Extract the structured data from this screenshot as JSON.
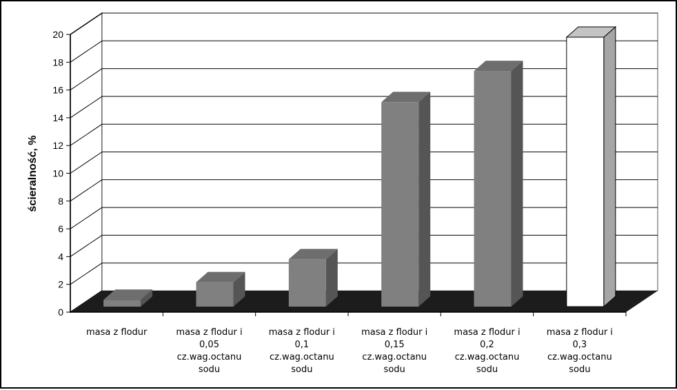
{
  "chart_data": {
    "type": "bar",
    "title": "",
    "xlabel": "",
    "ylabel": "ścieralność, %",
    "ylim": [
      0,
      20
    ],
    "yticks": [
      "0",
      "2",
      "4",
      "6",
      "8",
      "10",
      "12",
      "14",
      "16",
      "18",
      "20"
    ],
    "grid": true,
    "categories": [
      [
        "masa z flodur"
      ],
      [
        "masa z flodur i",
        "0,05",
        "cz.wag.octanu",
        "sodu"
      ],
      [
        "masa z flodur i",
        "0,1",
        "cz.wag.octanu",
        "sodu"
      ],
      [
        "masa z flodur i",
        "0,15",
        "cz.wag.octanu",
        "sodu"
      ],
      [
        "masa z flodur i",
        "0,2",
        "cz.wag.octanu",
        "sodu"
      ],
      [
        "masa z flodur i",
        "0,3",
        "cz.wag.octanu",
        "sodu"
      ]
    ],
    "values": [
      0.5,
      1.8,
      3.5,
      15.1,
      17.4,
      19.9
    ],
    "colors": {
      "bar_front": "#808080",
      "bar_side": "#555555",
      "bar_top": "#6e6e6e",
      "highlight_front": "#ffffff",
      "highlight_side": "#a6a6a6",
      "highlight_top": "#c4c4c4",
      "floor": "#1c1c1c",
      "gridline": "#000000"
    },
    "highlight_index": 5
  }
}
